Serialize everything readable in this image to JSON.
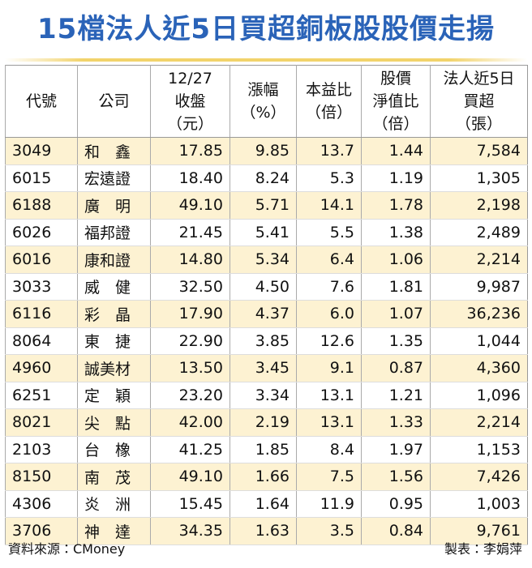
{
  "title": "15檔法人近5日買超銅板股股價走揚",
  "table": {
    "header": [
      [
        "代號"
      ],
      [
        "公司"
      ],
      [
        "12/27",
        "收盤",
        "（元）"
      ],
      [
        "漲幅",
        "（%）"
      ],
      [
        "本益比",
        "（倍）"
      ],
      [
        "股價",
        "淨值比",
        "（倍）"
      ],
      [
        "法人近5日",
        "買超",
        "（張）"
      ]
    ],
    "rows": [
      [
        "3049",
        "和　鑫",
        "17.85",
        "9.85",
        "13.7",
        "1.44",
        "7,584"
      ],
      [
        "6015",
        "宏遠證",
        "18.40",
        "8.24",
        "5.3",
        "1.19",
        "1,305"
      ],
      [
        "6188",
        "廣　明",
        "49.10",
        "5.71",
        "14.1",
        "1.78",
        "2,198"
      ],
      [
        "6026",
        "福邦證",
        "21.45",
        "5.41",
        "5.5",
        "1.38",
        "2,489"
      ],
      [
        "6016",
        "康和證",
        "14.80",
        "5.34",
        "6.4",
        "1.06",
        "2,214"
      ],
      [
        "3033",
        "威　健",
        "32.50",
        "4.50",
        "7.6",
        "1.81",
        "9,987"
      ],
      [
        "6116",
        "彩　晶",
        "17.90",
        "4.37",
        "6.0",
        "1.07",
        "36,236"
      ],
      [
        "8064",
        "東　捷",
        "22.90",
        "3.85",
        "12.6",
        "1.35",
        "1,044"
      ],
      [
        "4960",
        "誠美材",
        "13.50",
        "3.45",
        "9.1",
        "0.87",
        "4,360"
      ],
      [
        "6251",
        "定　穎",
        "23.20",
        "3.34",
        "13.1",
        "1.21",
        "1,096"
      ],
      [
        "8021",
        "尖　點",
        "42.00",
        "2.19",
        "13.1",
        "1.33",
        "2,214"
      ],
      [
        "2103",
        "台　橡",
        "41.25",
        "1.85",
        "8.4",
        "1.97",
        "1,153"
      ],
      [
        "8150",
        "南　茂",
        "49.10",
        "1.66",
        "7.5",
        "1.56",
        "7,426"
      ],
      [
        "4306",
        "炎　洲",
        "15.45",
        "1.64",
        "11.9",
        "0.95",
        "1,003"
      ],
      [
        "3706",
        "神　達",
        "34.35",
        "1.63",
        "3.5",
        "0.84",
        "9,761"
      ]
    ]
  },
  "footer": {
    "source": "資料來源：CMoney",
    "credit": "製表：李娟萍"
  }
}
